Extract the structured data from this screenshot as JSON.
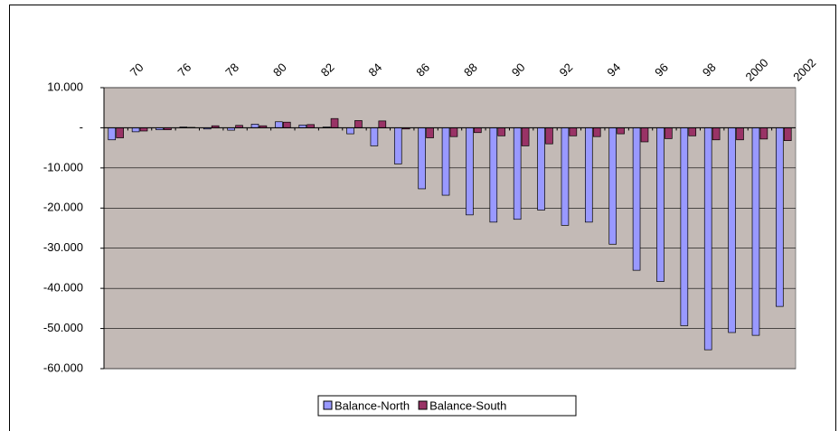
{
  "chart_data": {
    "type": "bar",
    "categories": [
      "70",
      null,
      "76",
      null,
      "78",
      null,
      "80",
      null,
      "82",
      null,
      "84",
      null,
      "86",
      null,
      "88",
      null,
      "90",
      null,
      "92",
      null,
      "94",
      null,
      "96",
      null,
      "98",
      null,
      "2000",
      null,
      "2002"
    ],
    "series": [
      {
        "name": "Balance-North",
        "color": "#9999ff",
        "values": [
          -3000,
          -1000,
          -500,
          200,
          -300,
          -600,
          900,
          1500,
          700,
          200,
          -1500,
          -4500,
          -9000,
          -15200,
          -16800,
          -21700,
          -23500,
          -22800,
          -20500,
          -24300,
          -23500,
          -29000,
          -35500,
          -38300,
          -49300,
          -55300,
          -51000,
          -51700,
          -44500
        ]
      },
      {
        "name": "Balance-South",
        "color": "#993366",
        "values": [
          -2500,
          -800,
          -500,
          100,
          500,
          600,
          500,
          1400,
          800,
          2300,
          1800,
          1700,
          -300,
          -2500,
          -2200,
          -1200,
          -2000,
          -4500,
          -4000,
          -2000,
          -2200,
          -1500,
          -3500,
          -2700,
          -2000,
          -3000,
          -3000,
          -2800,
          -3200
        ]
      }
    ],
    "ylim": [
      -60000,
      10000
    ],
    "yticks": [
      {
        "value": -60000,
        "label": "-60.000"
      },
      {
        "value": -50000,
        "label": "-50.000"
      },
      {
        "value": -40000,
        "label": "-40.000"
      },
      {
        "value": -30000,
        "label": "-30.000"
      },
      {
        "value": -20000,
        "label": "-20.000"
      },
      {
        "value": -10000,
        "label": "-10.000"
      },
      {
        "value": 0,
        "label": "-"
      },
      {
        "value": 10000,
        "label": "10.000"
      }
    ],
    "grid": true,
    "legend": "bottom"
  }
}
